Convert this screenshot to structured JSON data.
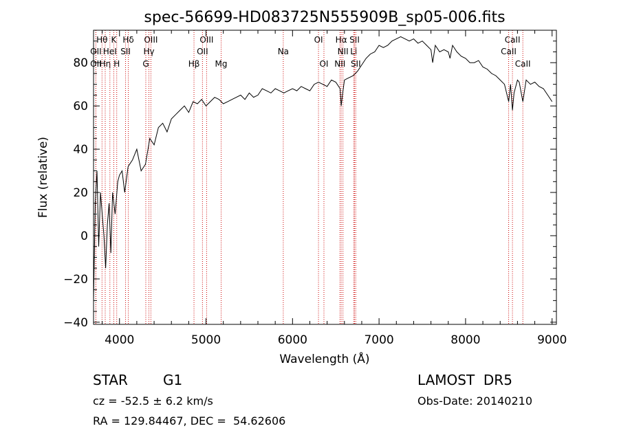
{
  "chart_data": {
    "type": "line",
    "title": "spec-56699-HD083725N555909B_sp05-006.fits",
    "xlabel": "Wavelength (Å)",
    "ylabel": "Flux (relative)",
    "xlim": [
      3700,
      9050
    ],
    "ylim": [
      -41,
      95
    ],
    "x_ticks": [
      4000,
      5000,
      6000,
      7000,
      8000,
      9000
    ],
    "y_ticks": [
      -40,
      -20,
      0,
      20,
      40,
      60,
      80
    ],
    "grid": false,
    "line_color": "#000000",
    "marker_color": "#cc0000",
    "series": [
      {
        "x": [
          3700,
          3720,
          3740,
          3760,
          3780,
          3800,
          3820,
          3840,
          3860,
          3880,
          3900,
          3920,
          3950,
          3980,
          4000,
          4030,
          4060,
          4100,
          4150,
          4200,
          4250,
          4300,
          4350,
          4400,
          4450,
          4500,
          4550,
          4600,
          4650,
          4700,
          4750,
          4800,
          4850,
          4900,
          4950,
          5000,
          5050,
          5100,
          5150,
          5200,
          5250,
          5300,
          5350,
          5400,
          5450,
          5500,
          5550,
          5600,
          5650,
          5700,
          5750,
          5800,
          5850,
          5900,
          5950,
          6000,
          6050,
          6100,
          6150,
          6200,
          6250,
          6300,
          6350,
          6400,
          6450,
          6500,
          6550,
          6563,
          6580,
          6600,
          6650,
          6700,
          6750,
          6800,
          6850,
          6900,
          6950,
          7000,
          7050,
          7100,
          7150,
          7200,
          7250,
          7300,
          7350,
          7400,
          7450,
          7500,
          7550,
          7600,
          7620,
          7650,
          7700,
          7750,
          7800,
          7820,
          7850,
          7900,
          7950,
          8000,
          8050,
          8100,
          8150,
          8200,
          8250,
          8300,
          8350,
          8400,
          8450,
          8498,
          8520,
          8542,
          8560,
          8600,
          8620,
          8662,
          8700,
          8750,
          8800,
          8850,
          8900,
          8950,
          9000
        ],
        "y": [
          -30,
          15,
          30,
          -5,
          20,
          10,
          0,
          -15,
          5,
          15,
          -8,
          20,
          10,
          25,
          28,
          30,
          20,
          32,
          35,
          40,
          30,
          33,
          45,
          42,
          50,
          52,
          48,
          54,
          56,
          58,
          60,
          57,
          62,
          61,
          63,
          60,
          62,
          64,
          63,
          61,
          62,
          63,
          64,
          65,
          63,
          66,
          64,
          65,
          68,
          67,
          66,
          68,
          67,
          66,
          67,
          68,
          67,
          69,
          68,
          67,
          70,
          71,
          70,
          69,
          72,
          71,
          68,
          60,
          66,
          72,
          73,
          74,
          76,
          79,
          82,
          84,
          85,
          88,
          87,
          88,
          90,
          91,
          92,
          91,
          90,
          91,
          89,
          90,
          88,
          86,
          80,
          88,
          85,
          86,
          85,
          82,
          88,
          85,
          83,
          82,
          80,
          80,
          81,
          78,
          77,
          75,
          74,
          72,
          70,
          62,
          70,
          58,
          66,
          72,
          71,
          62,
          72,
          70,
          71,
          69,
          68,
          65,
          62
        ]
      }
    ],
    "line_markers": [
      {
        "label": "Hθ",
        "wl": 3798,
        "row": 1
      },
      {
        "label": "OII",
        "wl": 3727,
        "row": 2
      },
      {
        "label": "OII",
        "wl": 3727,
        "row": 3
      },
      {
        "label": "Hη",
        "wl": 3835,
        "row": 3
      },
      {
        "label": "K",
        "wl": 3934,
        "row": 1
      },
      {
        "label": "HeI",
        "wl": 3889,
        "row": 2
      },
      {
        "label": "H",
        "wl": 3968,
        "row": 3
      },
      {
        "label": "Hδ",
        "wl": 4102,
        "row": 1
      },
      {
        "label": "SII",
        "wl": 4070,
        "row": 2
      },
      {
        "label": "OIII",
        "wl": 4363,
        "row": 1
      },
      {
        "label": "Hγ",
        "wl": 4340,
        "row": 2
      },
      {
        "label": "G",
        "wl": 4304,
        "row": 3
      },
      {
        "label": "OIII",
        "wl": 5007,
        "row": 1
      },
      {
        "label": "OII",
        "wl": 4959,
        "row": 2
      },
      {
        "label": "Hβ",
        "wl": 4861,
        "row": 3
      },
      {
        "label": "Mg",
        "wl": 5175,
        "row": 3
      },
      {
        "label": "Na",
        "wl": 5893,
        "row": 2
      },
      {
        "label": "OI",
        "wl": 6300,
        "row": 1
      },
      {
        "label": "OI",
        "wl": 6363,
        "row": 3
      },
      {
        "label": "Hα",
        "wl": 6563,
        "row": 1
      },
      {
        "label": "SII",
        "wl": 6717,
        "row": 1
      },
      {
        "label": "NII",
        "wl": 6583,
        "row": 2
      },
      {
        "label": "Li",
        "wl": 6707,
        "row": 2
      },
      {
        "label": "NII",
        "wl": 6548,
        "row": 3
      },
      {
        "label": "SII",
        "wl": 6731,
        "row": 3
      },
      {
        "label": "CaII",
        "wl": 8542,
        "row": 1
      },
      {
        "label": "CaII",
        "wl": 8498,
        "row": 2
      },
      {
        "label": "CaII",
        "wl": 8662,
        "row": 3
      }
    ]
  },
  "info": {
    "object_class": "STAR",
    "subclass": "G1",
    "survey": "LAMOST  DR5",
    "cz": "cz = -52.5 ± 6.2 km/s",
    "obs_date": "Obs-Date: 20140210",
    "coords": "RA = 129.84467, DEC =  54.62606"
  }
}
